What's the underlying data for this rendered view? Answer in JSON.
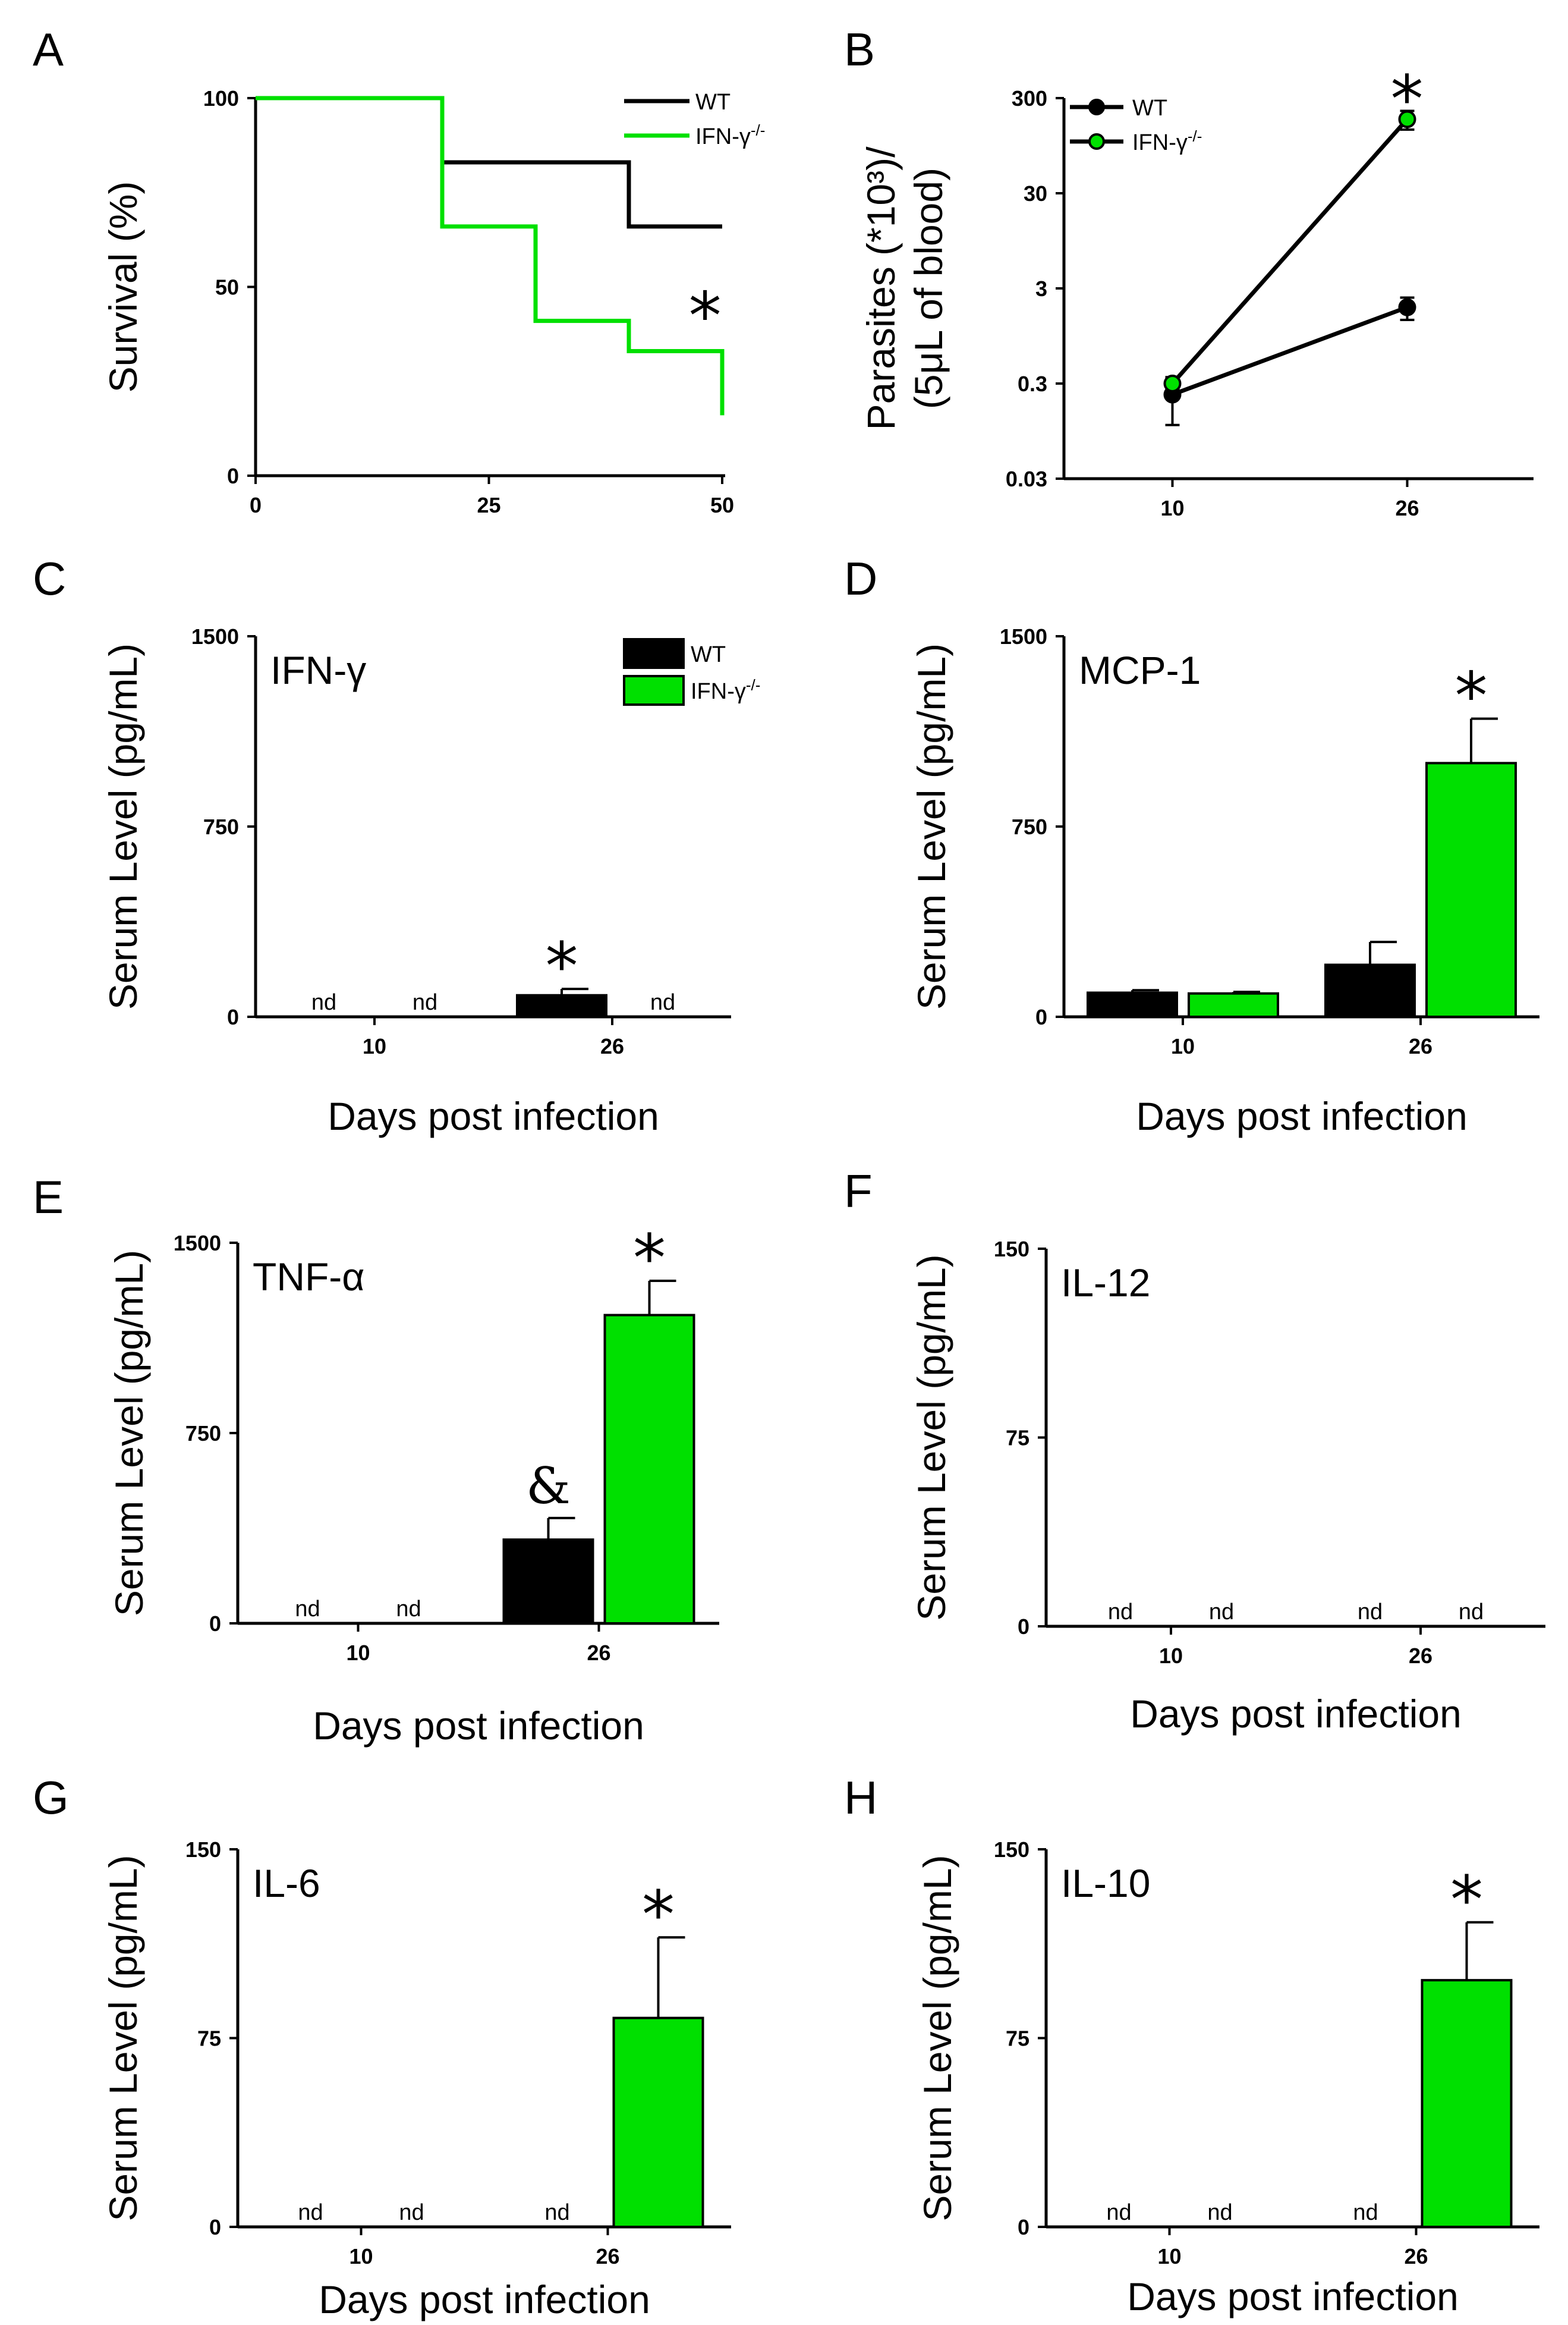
{
  "colors": {
    "wt": "#000000",
    "ko": "#00e000",
    "axis": "#000000"
  },
  "legend": {
    "wt": "WT",
    "ko": "IFN-γ⁻/⁻"
  },
  "chart_data": [
    {
      "id": "A",
      "panel_label": "A",
      "type": "line",
      "subtype": "survival-step",
      "title": "",
      "xlabel": "",
      "ylabel": "Survival (%)",
      "xlim": [
        0,
        50
      ],
      "ylim": [
        0,
        100
      ],
      "xticks": [
        {
          "v": 0,
          "label": "0"
        },
        {
          "v": 25,
          "label": "25"
        },
        {
          "v": 50,
          "label": "50"
        }
      ],
      "yticks": [
        {
          "v": 0,
          "label": "0"
        },
        {
          "v": 50,
          "label": "50"
        },
        {
          "v": 100,
          "label": "100"
        }
      ],
      "series": [
        {
          "name": "WT",
          "key": "wt",
          "x": [
            0,
            20,
            20,
            40,
            40,
            50
          ],
          "y": [
            100,
            100,
            83,
            83,
            66,
            66
          ]
        },
        {
          "name": "IFN-γ⁻/⁻",
          "key": "ko",
          "x": [
            0,
            20,
            20,
            30,
            30,
            40,
            40,
            50,
            50
          ],
          "y": [
            100,
            100,
            66,
            66,
            41,
            41,
            33,
            33,
            16
          ]
        }
      ],
      "annotations": [
        {
          "text": "*",
          "x": 48,
          "y": 45
        }
      ]
    },
    {
      "id": "B",
      "panel_label": "B",
      "type": "line",
      "subtype": "log-line",
      "title": "",
      "xlabel": "",
      "ylabel_lines": [
        "Parasites (*10³)/",
        "(5μL of blood)"
      ],
      "ylim": [
        0.03,
        300
      ],
      "categories": [
        "10",
        "26"
      ],
      "yticks": [
        {
          "v": 0.03,
          "label": "0.03"
        },
        {
          "v": 0.3,
          "label": "0.3"
        },
        {
          "v": 3,
          "label": "3"
        },
        {
          "v": 30,
          "label": "30"
        },
        {
          "v": 300,
          "label": "300"
        }
      ],
      "series": [
        {
          "name": "WT",
          "key": "wt",
          "values": [
            0.23,
            1.9
          ],
          "err": [
            0.12,
            0.5
          ]
        },
        {
          "name": "IFN-γ⁻/⁻",
          "key": "ko",
          "values": [
            0.3,
            180
          ],
          "err": [
            0.03,
            40
          ]
        }
      ],
      "annotations": [
        {
          "text": "*",
          "x_index": 1,
          "y": 420
        }
      ]
    },
    {
      "id": "C",
      "panel_label": "C",
      "type": "bar",
      "inner_label": "IFN-γ",
      "ylabel": "Serum Level (pg/mL)",
      "xlabel": "Days post infection",
      "ylim": [
        0,
        1500
      ],
      "categories": [
        "10",
        "26"
      ],
      "yticks": [
        {
          "v": 0,
          "label": "0"
        },
        {
          "v": 750,
          "label": "750"
        },
        {
          "v": 1500,
          "label": "1500"
        }
      ],
      "series": [
        {
          "name": "WT",
          "key": "wt",
          "values": [
            null,
            85
          ],
          "err": [
            null,
            25
          ],
          "nd": [
            "nd",
            ""
          ]
        },
        {
          "name": "IFN-γ⁻/⁻",
          "key": "ko",
          "values": [
            null,
            null
          ],
          "err": [
            null,
            null
          ],
          "nd": [
            "nd",
            "nd"
          ]
        }
      ],
      "annotations": [
        {
          "text": "*",
          "series": 0,
          "cat": 1
        }
      ],
      "legend": true
    },
    {
      "id": "D",
      "panel_label": "D",
      "type": "bar",
      "inner_label": "MCP-1",
      "ylabel": "Serum Level (pg/mL)",
      "xlabel": "Days post infection",
      "ylim": [
        0,
        1500
      ],
      "categories": [
        "10",
        "26"
      ],
      "yticks": [
        {
          "v": 0,
          "label": "0"
        },
        {
          "v": 750,
          "label": "750"
        },
        {
          "v": 1500,
          "label": "1500"
        }
      ],
      "series": [
        {
          "name": "WT",
          "key": "wt",
          "values": [
            95,
            205
          ],
          "err": [
            10,
            90
          ],
          "nd": [
            "",
            ""
          ]
        },
        {
          "name": "IFN-γ⁻/⁻",
          "key": "ko",
          "values": [
            92,
            1000
          ],
          "err": [
            6,
            175
          ],
          "nd": [
            "",
            ""
          ]
        }
      ],
      "annotations": [
        {
          "text": "*",
          "series": 1,
          "cat": 1
        }
      ]
    },
    {
      "id": "E",
      "panel_label": "E",
      "type": "bar",
      "inner_label": "TNF-α",
      "ylabel": "Serum Level (pg/mL)",
      "xlabel": "Days post infection",
      "ylim": [
        0,
        1500
      ],
      "categories": [
        "10",
        "26"
      ],
      "yticks": [
        {
          "v": 0,
          "label": "0"
        },
        {
          "v": 750,
          "label": "750"
        },
        {
          "v": 1500,
          "label": "1500"
        }
      ],
      "series": [
        {
          "name": "WT",
          "key": "wt",
          "values": [
            null,
            330
          ],
          "err": [
            null,
            85
          ],
          "nd": [
            "nd",
            ""
          ]
        },
        {
          "name": "IFN-γ⁻/⁻",
          "key": "ko",
          "values": [
            null,
            1215
          ],
          "err": [
            null,
            135
          ],
          "nd": [
            "nd",
            ""
          ]
        }
      ],
      "annotations": [
        {
          "text": "&",
          "series": 0,
          "cat": 1
        },
        {
          "text": "*",
          "series": 1,
          "cat": 1
        }
      ]
    },
    {
      "id": "F",
      "panel_label": "F",
      "type": "bar",
      "inner_label": "IL-12",
      "ylabel": "Serum Level (pg/mL)",
      "xlabel": "Days post infection",
      "ylim": [
        0,
        150
      ],
      "categories": [
        "10",
        "26"
      ],
      "yticks": [
        {
          "v": 0,
          "label": "0"
        },
        {
          "v": 75,
          "label": "75"
        },
        {
          "v": 150,
          "label": "150"
        }
      ],
      "series": [
        {
          "name": "WT",
          "key": "wt",
          "values": [
            null,
            null
          ],
          "err": [
            null,
            null
          ],
          "nd": [
            "nd",
            "nd"
          ]
        },
        {
          "name": "IFN-γ⁻/⁻",
          "key": "ko",
          "values": [
            null,
            null
          ],
          "err": [
            null,
            null
          ],
          "nd": [
            "nd",
            "nd"
          ]
        }
      ],
      "annotations": []
    },
    {
      "id": "G",
      "panel_label": "G",
      "type": "bar",
      "inner_label": "IL-6",
      "ylabel": "Serum Level (pg/mL)",
      "xlabel": "Days post infection",
      "ylim": [
        0,
        150
      ],
      "categories": [
        "10",
        "26"
      ],
      "yticks": [
        {
          "v": 0,
          "label": "0"
        },
        {
          "v": 75,
          "label": "75"
        },
        {
          "v": 150,
          "label": "150"
        }
      ],
      "series": [
        {
          "name": "WT",
          "key": "wt",
          "values": [
            null,
            null
          ],
          "err": [
            null,
            null
          ],
          "nd": [
            "nd",
            "nd"
          ]
        },
        {
          "name": "IFN-γ⁻/⁻",
          "key": "ko",
          "values": [
            null,
            83
          ],
          "err": [
            null,
            32
          ],
          "nd": [
            "nd",
            ""
          ]
        }
      ],
      "annotations": [
        {
          "text": "*",
          "series": 1,
          "cat": 1
        }
      ]
    },
    {
      "id": "H",
      "panel_label": "H",
      "type": "bar",
      "inner_label": "IL-10",
      "ylabel": "Serum Level (pg/mL)",
      "xlabel": "Days post infection",
      "ylim": [
        0,
        150
      ],
      "categories": [
        "10",
        "26"
      ],
      "yticks": [
        {
          "v": 0,
          "label": "0"
        },
        {
          "v": 75,
          "label": "75"
        },
        {
          "v": 150,
          "label": "150"
        }
      ],
      "series": [
        {
          "name": "WT",
          "key": "wt",
          "values": [
            null,
            null
          ],
          "err": [
            null,
            null
          ],
          "nd": [
            "nd",
            "nd"
          ]
        },
        {
          "name": "IFN-γ⁻/⁻",
          "key": "ko",
          "values": [
            null,
            98
          ],
          "err": [
            null,
            23
          ],
          "nd": [
            "nd",
            ""
          ]
        }
      ],
      "annotations": [
        {
          "text": "*",
          "series": 1,
          "cat": 1
        }
      ]
    }
  ]
}
